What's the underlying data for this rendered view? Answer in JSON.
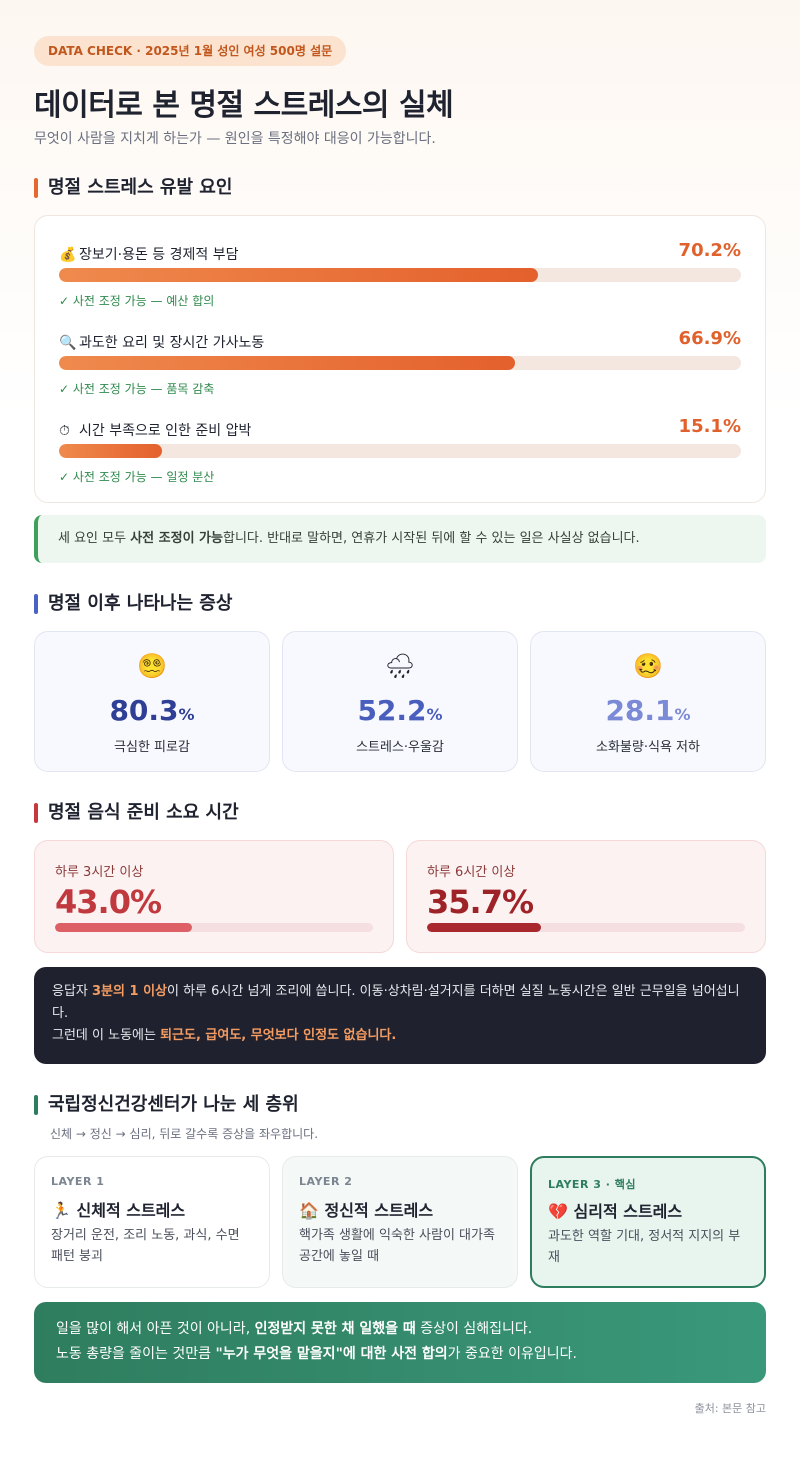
{
  "header": {
    "badge": "DATA CHECK · 2025년 1월 성인 여성 500명 설문",
    "title": "데이터로 본 명절 스트레스의 실체",
    "subtitle": "무엇이 사람을 지치게 하는가 — 원인을 특정해야 대응이 가능합니다."
  },
  "causes": {
    "heading": "명절 스트레스 유발 요인",
    "items": [
      {
        "icon": "💰",
        "icon_name": "money-bag-icon",
        "label": "장보기·용돈 등 경제적 부담",
        "value": "70.2%",
        "pct": 70.2,
        "note": "✓ 사전 조정 가능 — 예산 합의"
      },
      {
        "icon": "🔍",
        "icon_name": "magnifier-icon",
        "label": "과도한 요리 및 장시간 가사노동",
        "value": "66.9%",
        "pct": 66.9,
        "note": "✓ 사전 조정 가능 — 품목 감축"
      },
      {
        "icon": "⏱",
        "icon_name": "stopwatch-icon",
        "label": "시간 부족으로 인한 준비 압박",
        "value": "15.1%",
        "pct": 15.1,
        "note": "✓ 사전 조정 가능 — 일정 분산"
      }
    ],
    "callout_pre": "세 요인 모두 ",
    "callout_bold": "사전 조정이 가능",
    "callout_post": "합니다. 반대로 말하면, 연휴가 시작된 뒤에 할 수 있는 일은 사실상 없습니다."
  },
  "symptoms": {
    "heading": "명절 이후 나타나는 증상",
    "items": [
      {
        "emoji": "😵‍💫",
        "icon_name": "dizzy-face-icon",
        "value": "80.3",
        "unit": "%",
        "label": "극심한 피로감",
        "color": "#2f3f96"
      },
      {
        "emoji": "🌧",
        "icon_name": "rain-cloud-icon",
        "value": "52.2",
        "unit": "%",
        "label": "스트레스·우울감",
        "color": "#4a5ebd"
      },
      {
        "emoji": "🥴",
        "icon_name": "woozy-face-icon",
        "value": "28.1",
        "unit": "%",
        "label": "소화불량·식욕 저하",
        "color": "#7b8ad6"
      }
    ]
  },
  "cooking": {
    "heading": "명절 음식 준비 소요 시간",
    "items": [
      {
        "label": "하루 3시간 이상",
        "value": "43.0%",
        "pct": 43.0,
        "color": "#c0393f",
        "bar": "#dd6067"
      },
      {
        "label": "하루 6시간 이상",
        "value": "35.7%",
        "pct": 35.7,
        "color": "#9e2328",
        "bar": "#a8282e"
      }
    ],
    "dark_1a": "응답자 ",
    "dark_1b": "3분의 1 이상",
    "dark_1c": "이 하루 6시간 넘게 조리에 씁니다. 이동·상차림·설거지를 더하면 실질 노동시간은 일반 근무일을 넘어섭니다.",
    "dark_2a": "그런데 이 노동에는 ",
    "dark_2b": "퇴근도, 급여도, 무엇보다 인정도 없습니다."
  },
  "layers": {
    "heading": "국립정신건강센터가 나눈 세 층위",
    "subtitle": "신체 → 정신 → 심리, 뒤로 갈수록 증상을 좌우합니다.",
    "items": [
      {
        "key": "LAYER 1",
        "icon": "🏃",
        "icon_name": "running-person-icon",
        "title": "신체적 스트레스",
        "desc": "장거리 운전, 조리 노동, 과식, 수면 패턴 붕괴"
      },
      {
        "key": "LAYER 2",
        "icon": "🏠",
        "icon_name": "house-icon",
        "title": "정신적 스트레스",
        "desc": "핵가족 생활에 익숙한 사람이 대가족 공간에 놓일 때"
      },
      {
        "key": "LAYER 3 · 핵심",
        "icon": "💔",
        "icon_name": "broken-heart-icon",
        "title": "심리적 스트레스",
        "desc": "과도한 역할 기대, 정서적 지지의 부재"
      }
    ]
  },
  "conclusion": {
    "l1a": "일을 많이 해서 아픈 것이 아니라, ",
    "l1b": "인정받지 못한 채 일했을 때",
    "l1c": " 증상이 심해집니다.",
    "l2a": "노동 총량을 줄이는 것만큼 ",
    "l2b": "\"누가 무엇을 맡을지\"에 대한 사전 합의",
    "l2c": "가 중요한 이유입니다."
  },
  "source": "출처: 본문 참고"
}
